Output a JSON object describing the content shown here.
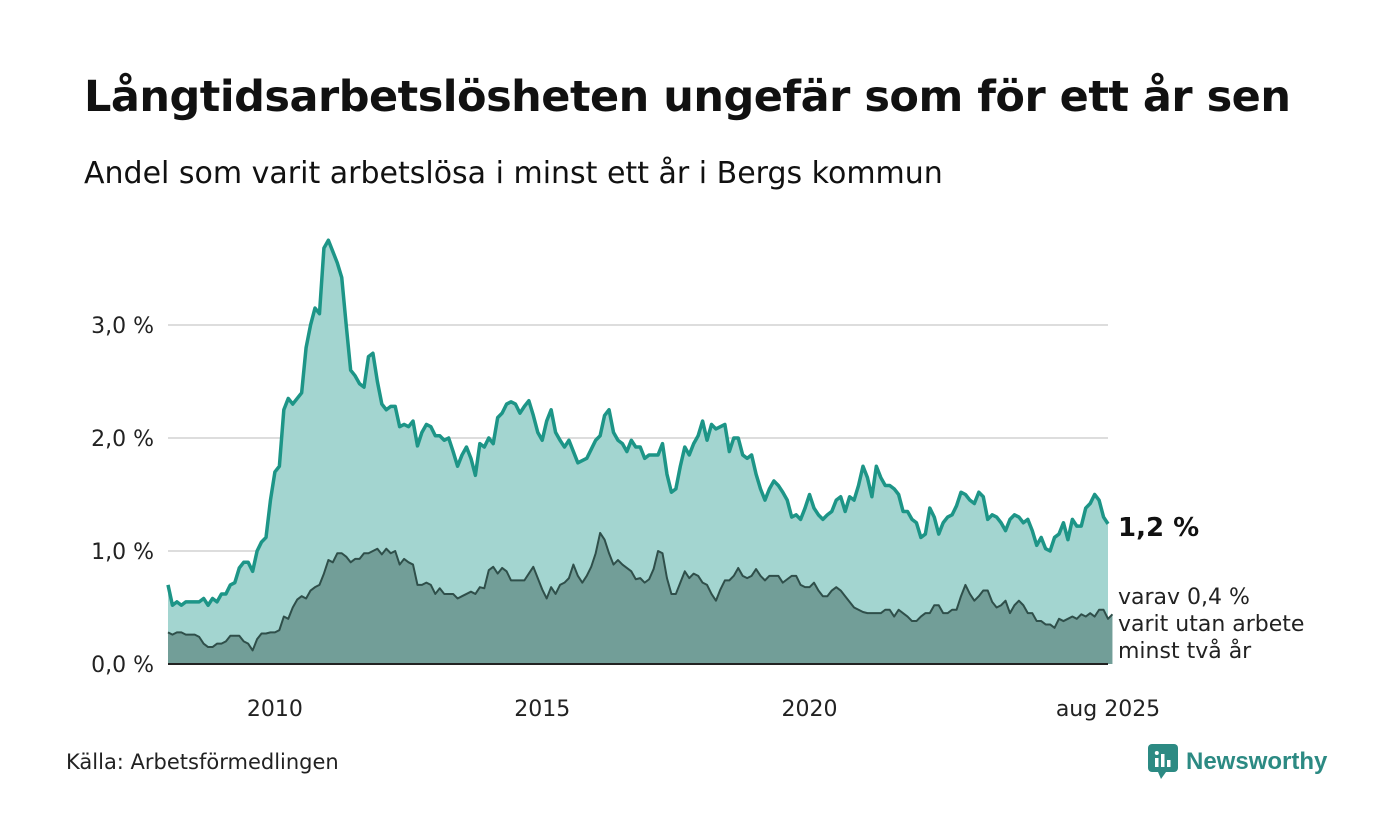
{
  "title": "Långtidsarbetslösheten ungefär som för ett år sen",
  "subtitle": "Andel som varit arbetslösa i minst ett år i Bergs kommun",
  "source": "Källa: Arbetsförmedlingen",
  "brand": {
    "name": "Newsworthy",
    "icon": "newsworthy-logo-icon"
  },
  "colors": {
    "one_year_line": "#1d9587",
    "one_year_fill": "#a3d5d0",
    "two_year_line": "#2f4f4a",
    "two_year_fill": "#729e98",
    "grid": "#dddddd"
  },
  "end_label": "1,2 %",
  "sub_label_lines": [
    "varav 0,4 %",
    "varit utan arbete",
    "minst två år"
  ],
  "chart_data": {
    "type": "area",
    "title": "Långtidsarbetslösheten ungefär som för ett år sen",
    "subtitle": "Andel som varit arbetslösa i minst ett år i Bergs kommun",
    "x_start": "2008-01",
    "x_end": "2025-08",
    "frequency": "monthly",
    "ylim": [
      0,
      3.8
    ],
    "y_ticks": [
      {
        "value": 0,
        "label": "0,0 %"
      },
      {
        "value": 1,
        "label": "1,0 %"
      },
      {
        "value": 2,
        "label": "2,0 %"
      },
      {
        "value": 3,
        "label": "3,0 %"
      }
    ],
    "x_ticks": [
      {
        "date": "2010-01",
        "label": "2010"
      },
      {
        "date": "2015-01",
        "label": "2015"
      },
      {
        "date": "2020-01",
        "label": "2020"
      },
      {
        "date": "2025-08",
        "label": "aug 2025"
      }
    ],
    "grid": true,
    "series": [
      {
        "label": "1,2 %",
        "values": [
          0.7,
          0.52,
          0.55,
          0.52,
          0.55,
          0.55,
          0.55,
          0.55,
          0.58,
          0.52,
          0.58,
          0.55,
          0.62,
          0.62,
          0.7,
          0.72,
          0.85,
          0.9,
          0.9,
          0.82,
          1.0,
          1.08,
          1.12,
          1.45,
          1.7,
          1.75,
          2.25,
          2.35,
          2.3,
          2.35,
          2.4,
          2.8,
          3.0,
          3.15,
          3.1,
          3.68,
          3.75,
          3.65,
          3.55,
          3.42,
          3.0,
          2.6,
          2.55,
          2.48,
          2.45,
          2.72,
          2.75,
          2.5,
          2.3,
          2.25,
          2.28,
          2.28,
          2.1,
          2.12,
          2.1,
          2.15,
          1.93,
          2.05,
          2.12,
          2.1,
          2.02,
          2.02,
          1.98,
          2.0,
          1.88,
          1.75,
          1.85,
          1.92,
          1.82,
          1.67,
          1.95,
          1.92,
          2.0,
          1.95,
          2.18,
          2.22,
          2.3,
          2.32,
          2.3,
          2.22,
          2.28,
          2.33,
          2.2,
          2.05,
          1.98,
          2.15,
          2.25,
          2.05,
          1.98,
          1.92,
          1.98,
          1.88,
          1.78,
          1.8,
          1.82,
          1.9,
          1.98,
          2.02,
          2.2,
          2.25,
          2.05,
          1.98,
          1.95,
          1.88,
          1.98,
          1.92,
          1.92,
          1.82,
          1.85,
          1.85,
          1.85,
          1.95,
          1.68,
          1.52,
          1.55,
          1.75,
          1.92,
          1.85,
          1.95,
          2.02,
          2.15,
          1.98,
          2.12,
          2.08,
          2.1,
          2.12,
          1.88,
          2.0,
          2.0,
          1.85,
          1.82,
          1.85,
          1.68,
          1.55,
          1.45,
          1.55,
          1.62,
          1.58,
          1.52,
          1.45,
          1.3,
          1.32,
          1.28,
          1.38,
          1.5,
          1.38,
          1.32,
          1.28,
          1.32,
          1.35,
          1.45,
          1.48,
          1.35,
          1.48,
          1.45,
          1.58,
          1.75,
          1.65,
          1.48,
          1.75,
          1.65,
          1.58,
          1.58,
          1.55,
          1.5,
          1.35,
          1.35,
          1.28,
          1.25,
          1.12,
          1.15,
          1.38,
          1.3,
          1.15,
          1.25,
          1.3,
          1.32,
          1.4,
          1.52,
          1.5,
          1.45,
          1.42,
          1.52,
          1.48,
          1.28,
          1.32,
          1.3,
          1.25,
          1.18,
          1.28,
          1.32,
          1.3,
          1.25,
          1.28,
          1.18,
          1.05,
          1.12,
          1.02,
          1.0,
          1.12,
          1.15,
          1.25,
          1.1,
          1.28,
          1.22,
          1.22,
          1.38,
          1.42,
          1.5,
          1.45,
          1.3,
          1.24
        ]
      },
      {
        "label": "varav 0,4 %",
        "values": [
          0.28,
          0.26,
          0.28,
          0.28,
          0.26,
          0.26,
          0.26,
          0.24,
          0.18,
          0.15,
          0.15,
          0.18,
          0.18,
          0.2,
          0.25,
          0.25,
          0.25,
          0.2,
          0.18,
          0.12,
          0.22,
          0.27,
          0.27,
          0.28,
          0.28,
          0.3,
          0.42,
          0.4,
          0.5,
          0.57,
          0.6,
          0.58,
          0.65,
          0.68,
          0.7,
          0.8,
          0.92,
          0.9,
          0.98,
          0.98,
          0.95,
          0.9,
          0.93,
          0.93,
          0.98,
          0.98,
          1.0,
          1.02,
          0.97,
          1.02,
          0.98,
          1.0,
          0.88,
          0.93,
          0.9,
          0.88,
          0.7,
          0.7,
          0.72,
          0.7,
          0.62,
          0.67,
          0.62,
          0.62,
          0.62,
          0.58,
          0.6,
          0.62,
          0.64,
          0.62,
          0.68,
          0.67,
          0.83,
          0.86,
          0.8,
          0.85,
          0.82,
          0.74,
          0.74,
          0.74,
          0.74,
          0.8,
          0.86,
          0.76,
          0.66,
          0.58,
          0.68,
          0.62,
          0.7,
          0.72,
          0.76,
          0.88,
          0.78,
          0.72,
          0.78,
          0.86,
          0.98,
          1.16,
          1.1,
          0.98,
          0.88,
          0.92,
          0.88,
          0.85,
          0.82,
          0.75,
          0.76,
          0.72,
          0.75,
          0.84,
          1.0,
          0.98,
          0.76,
          0.62,
          0.62,
          0.72,
          0.82,
          0.76,
          0.8,
          0.78,
          0.72,
          0.7,
          0.62,
          0.56,
          0.66,
          0.74,
          0.74,
          0.78,
          0.85,
          0.78,
          0.76,
          0.78,
          0.84,
          0.78,
          0.74,
          0.78,
          0.78,
          0.78,
          0.72,
          0.75,
          0.78,
          0.78,
          0.7,
          0.68,
          0.68,
          0.72,
          0.65,
          0.6,
          0.6,
          0.65,
          0.68,
          0.65,
          0.6,
          0.55,
          0.5,
          0.48,
          0.46,
          0.45,
          0.45,
          0.45,
          0.45,
          0.48,
          0.48,
          0.42,
          0.48,
          0.45,
          0.42,
          0.38,
          0.38,
          0.42,
          0.45,
          0.45,
          0.52,
          0.52,
          0.45,
          0.45,
          0.48,
          0.48,
          0.6,
          0.7,
          0.62,
          0.56,
          0.6,
          0.65,
          0.65,
          0.55,
          0.5,
          0.52,
          0.56,
          0.45,
          0.52,
          0.56,
          0.52,
          0.45,
          0.45,
          0.38,
          0.38,
          0.35,
          0.35,
          0.32,
          0.4,
          0.38,
          0.4,
          0.42,
          0.4,
          0.44,
          0.42,
          0.45,
          0.42,
          0.48,
          0.48,
          0.4,
          0.44
        ]
      }
    ]
  }
}
